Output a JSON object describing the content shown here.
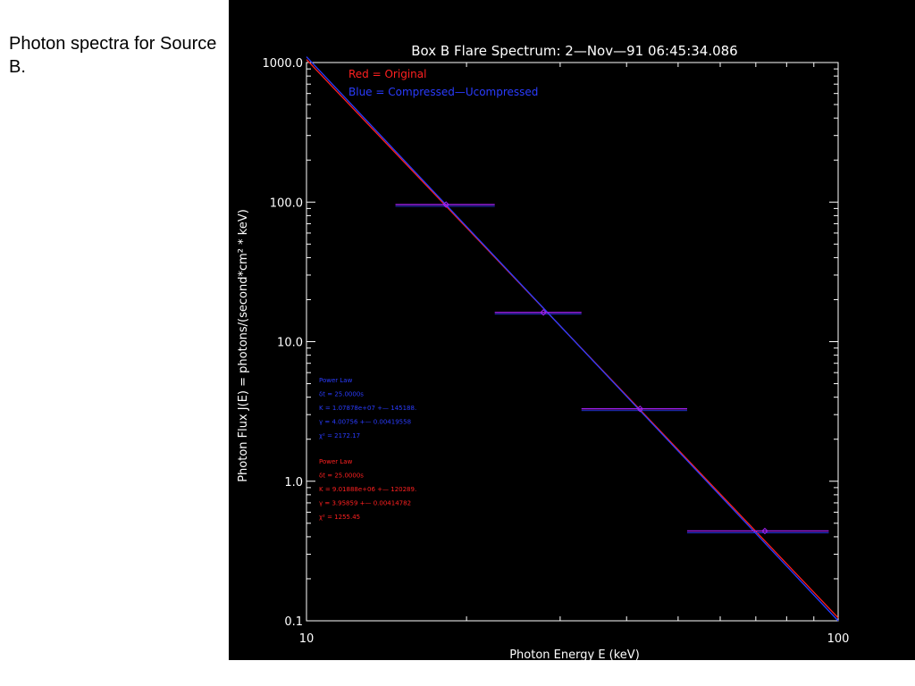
{
  "caption": "Photon spectra for Source B.",
  "colors": {
    "background": "#000000",
    "axis": "#ffffff",
    "original": "#ff2020",
    "compressed": "#2a3cff",
    "data_points": "#a020f0"
  },
  "chart_data": {
    "type": "line",
    "title": "Box B Flare Spectrum: 2—Nov—91 06:45:34.086",
    "xlabel": "Photon Energy E (keV)",
    "ylabel": "Photon Flux   J(E) = photons/(second*cm² * keV)",
    "xscale": "log",
    "yscale": "log",
    "xlim": [
      10,
      100
    ],
    "ylim": [
      0.1,
      1000
    ],
    "xticks": [
      {
        "v": 10,
        "label": "10"
      },
      {
        "v": 100,
        "label": "100"
      }
    ],
    "yticks": [
      {
        "v": 0.1,
        "label": "0.1"
      },
      {
        "v": 1,
        "label": "1.0"
      },
      {
        "v": 10,
        "label": "10.0"
      },
      {
        "v": 100,
        "label": "100.0"
      },
      {
        "v": 1000,
        "label": "1000.0"
      }
    ],
    "legend": [
      {
        "text": "Red = Original",
        "color": "#ff2020"
      },
      {
        "text": "Blue = Compressed—Ucompressed",
        "color": "#2a3cff"
      }
    ],
    "series": [
      {
        "name": "Original",
        "color": "#ff2020",
        "x": [
          10,
          100
        ],
        "y": [
          1050,
          0.105
        ]
      },
      {
        "name": "Compressed—Ucompressed",
        "color": "#2a3cff",
        "x": [
          10,
          100
        ],
        "y": [
          1100,
          0.1
        ]
      }
    ],
    "data_points": [
      {
        "x": 18.3,
        "y": 96,
        "xerr": [
          14.7,
          22.6
        ]
      },
      {
        "x": 27.9,
        "y": 16.2,
        "xerr": [
          22.6,
          32.9
        ]
      },
      {
        "x": 42.4,
        "y": 3.3,
        "xerr": [
          32.9,
          52.0
        ]
      },
      {
        "x": 72.8,
        "y": 0.44,
        "xerr": [
          52.0,
          96.0
        ]
      }
    ],
    "fit_annotations": [
      {
        "color": "#2a3cff",
        "lines": [
          "Power Law",
          "  δt = 25.0000s",
          "K = 1.07878e+07 +— 145188.",
          "  γ = 4.00756 +— 0.00419558",
          "χ² = 2172.17"
        ]
      },
      {
        "color": "#ff2020",
        "lines": [
          "Power Law",
          "  δt = 25.0000s",
          "K = 9.01888e+06 +— 120289.",
          "  γ = 3.95859 +— 0.00414782",
          "χ² = 1255.45"
        ]
      }
    ]
  }
}
